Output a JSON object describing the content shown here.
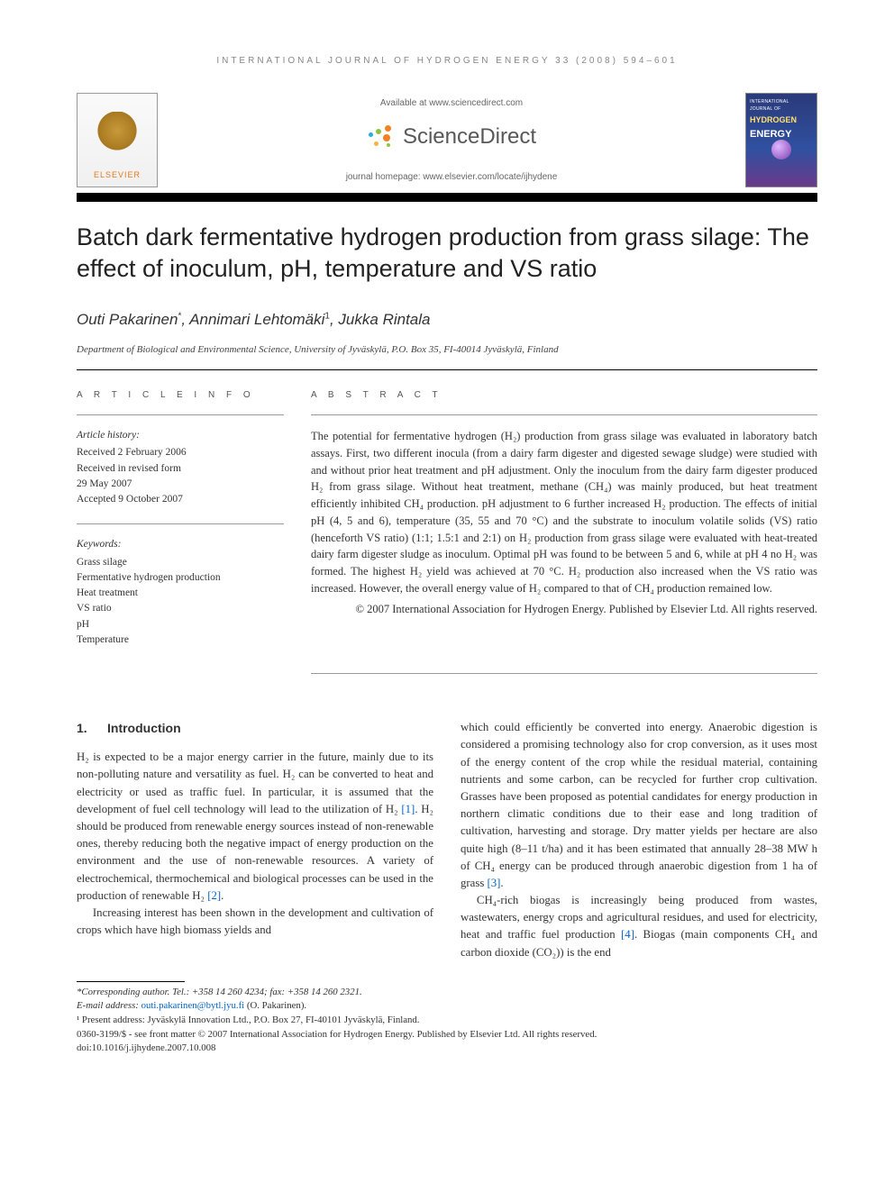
{
  "running_header": "INTERNATIONAL JOURNAL OF HYDROGEN ENERGY 33 (2008) 594–601",
  "publisher": {
    "name": "ELSEVIER",
    "available_at": "Available at www.sciencedirect.com",
    "platform": "ScienceDirect",
    "homepage": "journal homepage: www.elsevier.com/locate/ijhydene",
    "logo_colors": {
      "orange": "#f58220",
      "green": "#8bc53f",
      "blue": "#29abe2",
      "yellow": "#fbb040"
    }
  },
  "journal_cover": {
    "line1": "INTERNATIONAL JOURNAL OF",
    "line2": "HYDROGEN",
    "line3": "ENERGY"
  },
  "title": "Batch dark fermentative hydrogen production from grass silage: The effect of inoculum, pH, temperature and VS ratio",
  "authors_html": "Outi Pakarinen<sup>*</sup>, Annimari Lehtomäki<sup>1</sup>, Jukka Rintala",
  "affiliation": "Department of Biological and Environmental Science, University of Jyväskylä, P.O. Box 35, FI-40014 Jyväskylä, Finland",
  "article_info_label": "A R T I C L E   I N F O",
  "abstract_label": "A B S T R A C T",
  "history": {
    "heading": "Article history:",
    "received": "Received 2 February 2006",
    "revised1": "Received in revised form",
    "revised2": "29 May 2007",
    "accepted": "Accepted 9 October 2007"
  },
  "keywords": {
    "heading": "Keywords:",
    "items": [
      "Grass silage",
      "Fermentative hydrogen production",
      "Heat treatment",
      "VS ratio",
      "pH",
      "Temperature"
    ]
  },
  "abstract": "The potential for fermentative hydrogen (H₂) production from grass silage was evaluated in laboratory batch assays. First, two different inocula (from a dairy farm digester and digested sewage sludge) were studied with and without prior heat treatment and pH adjustment. Only the inoculum from the dairy farm digester produced H₂ from grass silage. Without heat treatment, methane (CH₄) was mainly produced, but heat treatment efficiently inhibited CH₄ production. pH adjustment to 6 further increased H₂ production. The effects of initial pH (4, 5 and 6), temperature (35, 55 and 70 °C) and the substrate to inoculum volatile solids (VS) ratio (henceforth VS ratio) (1:1; 1.5:1 and 2:1) on H₂ production from grass silage were evaluated with heat-treated dairy farm digester sludge as inoculum. Optimal pH was found to be between 5 and 6, while at pH 4 no H₂ was formed. The highest H₂ yield was achieved at 70 °C. H₂ production also increased when the VS ratio was increased. However, the overall energy value of H₂ compared to that of CH₄ production remained low.",
  "copyright": "© 2007 International Association for Hydrogen Energy. Published by Elsevier Ltd. All rights reserved.",
  "section1": {
    "num": "1.",
    "heading": "Introduction"
  },
  "body": {
    "p1": "H₂ is expected to be a major energy carrier in the future, mainly due to its non-polluting nature and versatility as fuel. H₂ can be converted to heat and electricity or used as traffic fuel. In particular, it is assumed that the development of fuel cell technology will lead to the utilization of H₂ ",
    "ref1": "[1]",
    "p1b": ". H₂ should be produced from renewable energy sources instead of non-renewable ones, thereby reducing both the negative impact of energy production on the environment and the use of non-renewable resources. A variety of electrochemical, thermochemical and biological processes can be used in the production of renewable H₂ ",
    "ref2": "[2]",
    "p1c": ".",
    "p2": "Increasing interest has been shown in the development and cultivation of crops which have high biomass yields and",
    "p3a": "which could efficiently be converted into energy. Anaerobic digestion is considered a promising technology also for crop conversion, as it uses most of the energy content of the crop while the residual material, containing nutrients and some carbon, can be recycled for further crop cultivation. Grasses have been proposed as potential candidates for energy production in northern climatic conditions due to their ease and long tradition of cultivation, harvesting and storage. Dry matter yields per hectare are also quite high (8–11 t/ha) and it has been estimated that annually 28–38 MW h of CH₄ energy can be produced through anaerobic digestion from 1 ha of grass ",
    "ref3": "[3]",
    "p3b": ".",
    "p4a": "CH₄-rich biogas is increasingly being produced from wastes, wastewaters, energy crops and agricultural residues, and used for electricity, heat and traffic fuel production ",
    "ref4": "[4]",
    "p4b": ". Biogas (main components CH₄ and carbon dioxide (CO₂)) is the end"
  },
  "footnotes": {
    "corr": "*Corresponding author. Tel.: +358 14 260 4234; fax: +358 14 260 2321.",
    "email_label": "E-mail address: ",
    "email": "outi.pakarinen@bytl.jyu.fi",
    "email_paren": " (O. Pakarinen).",
    "present": "¹ Present address: Jyväskylä Innovation Ltd., P.O. Box 27, FI-40101 Jyväskylä, Finland.",
    "rights": "0360-3199/$ - see front matter © 2007 International Association for Hydrogen Energy. Published by Elsevier Ltd. All rights reserved.",
    "doi": "doi:10.1016/j.ijhydene.2007.10.008"
  },
  "colors": {
    "link": "#0066cc",
    "text": "#333333",
    "rule": "#000000"
  }
}
